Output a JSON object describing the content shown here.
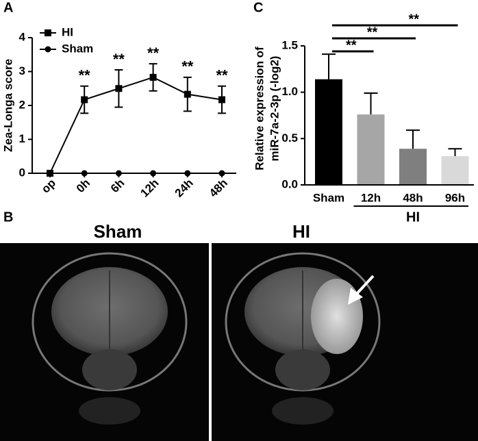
{
  "chart_data": [
    {
      "type": "line",
      "panel_label": "A",
      "ylabel": "Zea-Longa score",
      "categories": [
        "op",
        "0h",
        "6h",
        "12h",
        "24h",
        "48h"
      ],
      "series": [
        {
          "name": "HI",
          "color": "#000000",
          "marker": "square",
          "values": [
            0,
            2.17,
            2.5,
            2.83,
            2.33,
            2.17
          ],
          "errors": [
            0,
            0.4,
            0.55,
            0.4,
            0.5,
            0.4
          ]
        },
        {
          "name": "Sham",
          "color": "#000000",
          "marker": "circle",
          "values": [
            0,
            0,
            0,
            0,
            0,
            0
          ]
        }
      ],
      "value_annotations": [
        null,
        "**",
        "**",
        "**",
        "**",
        "**"
      ],
      "ylim": [
        0,
        4
      ],
      "yticks": [
        0,
        1,
        2,
        3,
        4
      ],
      "legend": "upper-left"
    },
    {
      "type": "bar",
      "panel_label": "C",
      "ylabel": [
        "Relative expression of",
        "miR-7a-2-3p (-log2)"
      ],
      "categories": [
        "Sham",
        "12h",
        "48h",
        "96h"
      ],
      "values": [
        1.14,
        0.76,
        0.39,
        0.31
      ],
      "errors": [
        0.27,
        0.23,
        0.2,
        0.08
      ],
      "colors": [
        "#000000",
        "#a6a6a6",
        "#7f7f7f",
        "#d9d9d9"
      ],
      "group_label": "HI",
      "significance": [
        "**",
        "**",
        "**"
      ],
      "ylim": [
        0,
        1.5
      ],
      "yticks": [
        {
          "value": 0,
          "label": "0.0"
        },
        0.5,
        {
          "value": 1,
          "label": "1.0"
        },
        1.5
      ]
    }
  ],
  "mri": {
    "panel_label": "B",
    "titles": [
      "Sham",
      "HI"
    ]
  }
}
